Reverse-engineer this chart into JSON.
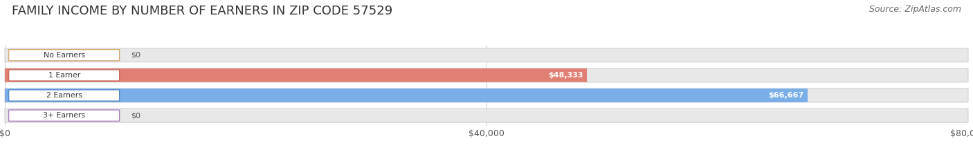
{
  "title": "FAMILY INCOME BY NUMBER OF EARNERS IN ZIP CODE 57529",
  "source": "Source: ZipAtlas.com",
  "categories": [
    "No Earners",
    "1 Earner",
    "2 Earners",
    "3+ Earners"
  ],
  "values": [
    0,
    48333,
    66667,
    0
  ],
  "bar_colors": [
    "#f5c48a",
    "#e07f74",
    "#7aaee8",
    "#c9a8dc"
  ],
  "label_border_colors": [
    "#d4a870",
    "#cc6b60",
    "#5588cc",
    "#aa80c0"
  ],
  "value_labels": [
    "$0",
    "$48,333",
    "$66,667",
    "$0"
  ],
  "xlim": [
    0,
    80000
  ],
  "xticks": [
    0,
    40000,
    80000
  ],
  "xtick_labels": [
    "$0",
    "$40,000",
    "$80,000"
  ],
  "background_color": "#ffffff",
  "bar_bg_color": "#e8e8e8",
  "bar_bg_border_color": "#d0d0d0",
  "title_fontsize": 13,
  "source_fontsize": 9,
  "figsize": [
    14.06,
    2.33
  ],
  "dpi": 100
}
